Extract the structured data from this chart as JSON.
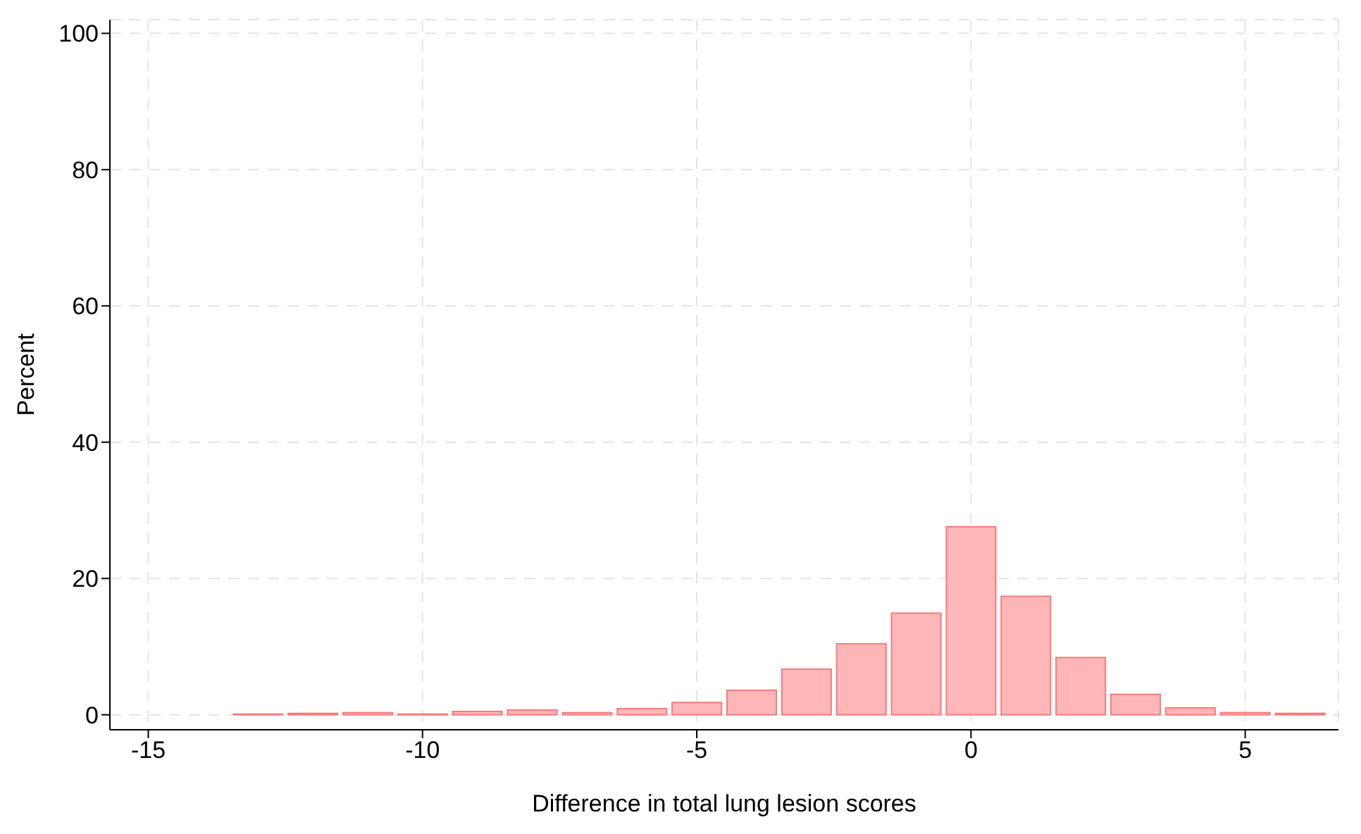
{
  "chart_data": {
    "type": "histogram",
    "xlabel": "Difference in total lung lesion scores",
    "ylabel": "Percent",
    "bins": [
      -13.5,
      -12.5,
      -11.5,
      -10.5,
      -9.5,
      -8.5,
      -7.5,
      -6.5,
      -5.5,
      -4.5,
      -3.5,
      -2.5,
      -1.5,
      -0.5,
      0.5,
      1.5,
      2.5,
      3.5,
      4.5,
      5.5,
      6.5
    ],
    "values": [
      0.1,
      0.2,
      0.3,
      0.1,
      0.5,
      0.7,
      0.3,
      0.9,
      1.8,
      3.6,
      6.7,
      10.4,
      14.9,
      27.6,
      17.4,
      8.4,
      3.0,
      1.0,
      0.3,
      0.2
    ],
    "color": "#ffb6b6",
    "xlim": [
      -15.7,
      6.7
    ],
    "xticks": [
      -15,
      -10,
      -5,
      0,
      5
    ],
    "ylim": [
      -2.2,
      102
    ],
    "yticks": [
      0,
      20,
      40,
      60,
      80,
      100
    ],
    "grid": true
  }
}
